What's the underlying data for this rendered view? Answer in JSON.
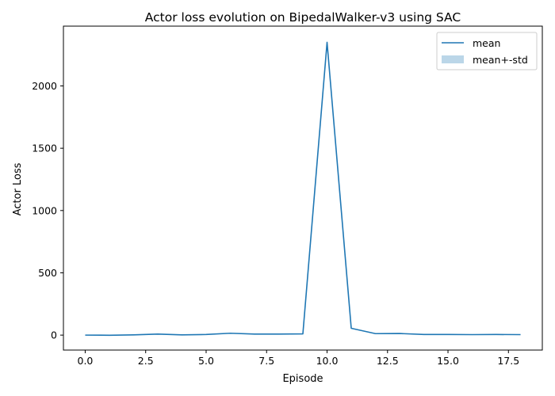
{
  "chart_data": {
    "type": "line",
    "title": "Actor loss evolution on BipedalWalker-v3 using SAC",
    "xlabel": "Episode",
    "ylabel": "Actor Loss",
    "xlim": [
      -0.9,
      18.9
    ],
    "ylim": [
      -120,
      2480
    ],
    "xticks": [
      "0.0",
      "2.5",
      "5.0",
      "7.5",
      "10.0",
      "12.5",
      "15.0",
      "17.5"
    ],
    "xtick_values": [
      0,
      2.5,
      5,
      7.5,
      10,
      12.5,
      15,
      17.5
    ],
    "yticks": [
      "0",
      "500",
      "1000",
      "1500",
      "2000"
    ],
    "ytick_values": [
      0,
      500,
      1000,
      1500,
      2000
    ],
    "grid": false,
    "legend_position": "top-right",
    "series": [
      {
        "name": "mean",
        "color": "#1f77b4",
        "x": [
          0,
          1,
          2,
          3,
          4,
          5,
          6,
          7,
          8,
          9,
          10,
          11,
          12,
          13,
          14,
          15,
          16,
          17,
          18
        ],
        "y": [
          0,
          -1,
          2,
          8,
          2,
          5,
          15,
          8,
          8,
          10,
          2350,
          55,
          12,
          13,
          5,
          5,
          4,
          5,
          4
        ]
      }
    ],
    "band": {
      "name": "mean+-std",
      "color": "#1f77b4",
      "opacity": 0.3
    }
  }
}
